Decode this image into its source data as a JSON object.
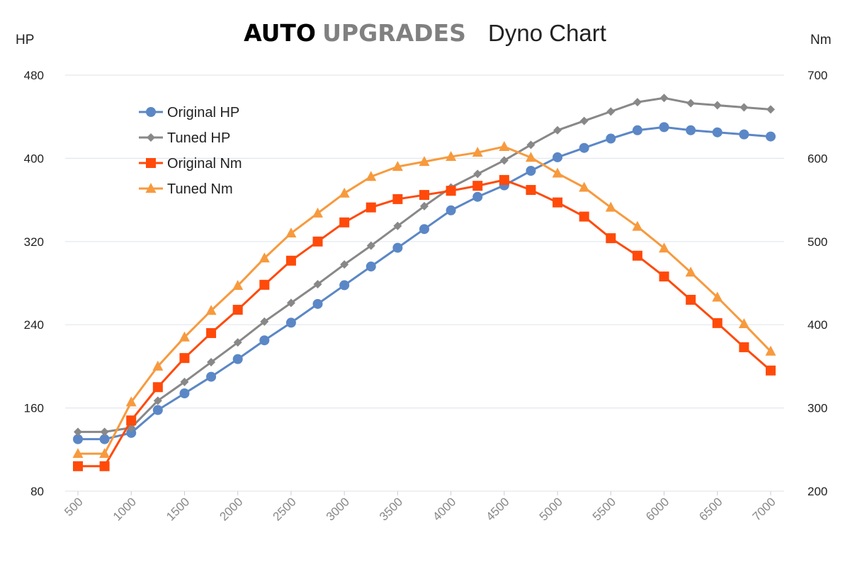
{
  "header": {
    "brand_part1": "AUTO",
    "brand_part2": "UPGRADES",
    "title": "Dyno Chart"
  },
  "colors": {
    "original_hp": "#5b87c6",
    "tuned_hp": "#888888",
    "original_nm": "#ff4a0a",
    "tuned_nm": "#f79a3e",
    "grid": "#e3e7ee",
    "brand_dark": "#000000",
    "brand_grey": "#808080"
  },
  "chart_data": {
    "type": "line",
    "title": "AUTO UPGRADES Dyno Chart",
    "ylabel_left": "HP",
    "ylabel_right": "Nm",
    "xlabel": "",
    "x": [
      500,
      750,
      1000,
      1250,
      1500,
      1750,
      2000,
      2250,
      2500,
      2750,
      3000,
      3250,
      3500,
      3750,
      4000,
      4250,
      4500,
      4750,
      5000,
      5250,
      5500,
      5750,
      6000,
      6250,
      6500,
      6750,
      7000
    ],
    "x_tick_labels": [
      "500",
      "1000",
      "1500",
      "2000",
      "2500",
      "3000",
      "3500",
      "4000",
      "4500",
      "5000",
      "5500",
      "6000",
      "6500",
      "7000"
    ],
    "xlim": [
      500,
      7000
    ],
    "ylim_left": [
      80,
      480
    ],
    "yticks_left": [
      "80",
      "160",
      "240",
      "320",
      "400",
      "480"
    ],
    "ylim_right": [
      200,
      700
    ],
    "yticks_right": [
      "200",
      "300",
      "400",
      "500",
      "600",
      "700"
    ],
    "grid": true,
    "legend_position": "top-left",
    "series": [
      {
        "name": "Original HP",
        "axis": "left",
        "marker": "circle",
        "values": [
          130,
          130,
          136,
          158,
          174,
          190,
          207,
          225,
          242,
          260,
          278,
          296,
          314,
          332,
          350,
          363,
          374,
          388,
          401,
          410,
          419,
          427,
          430,
          427,
          425,
          423,
          421
        ]
      },
      {
        "name": "Tuned HP",
        "axis": "left",
        "marker": "diamond",
        "values": [
          137,
          137,
          141,
          167,
          185,
          204,
          223,
          243,
          261,
          279,
          298,
          316,
          335,
          354,
          372,
          385,
          398,
          413,
          427,
          436,
          445,
          454,
          458,
          453,
          451,
          449,
          447
        ]
      },
      {
        "name": "Original Nm",
        "axis": "right",
        "marker": "square",
        "values": [
          230,
          230,
          285,
          325,
          360,
          390,
          418,
          448,
          477,
          500,
          523,
          541,
          551,
          556,
          561,
          567,
          574,
          562,
          547,
          530,
          504,
          483,
          458,
          430,
          402,
          373,
          345
        ]
      },
      {
        "name": "Tuned Nm",
        "axis": "right",
        "marker": "triangle",
        "values": [
          245,
          245,
          307,
          350,
          385,
          417,
          447,
          480,
          510,
          534,
          558,
          578,
          590,
          596,
          602,
          607,
          614,
          601,
          582,
          565,
          541,
          518,
          492,
          463,
          433,
          401,
          368
        ]
      }
    ]
  }
}
